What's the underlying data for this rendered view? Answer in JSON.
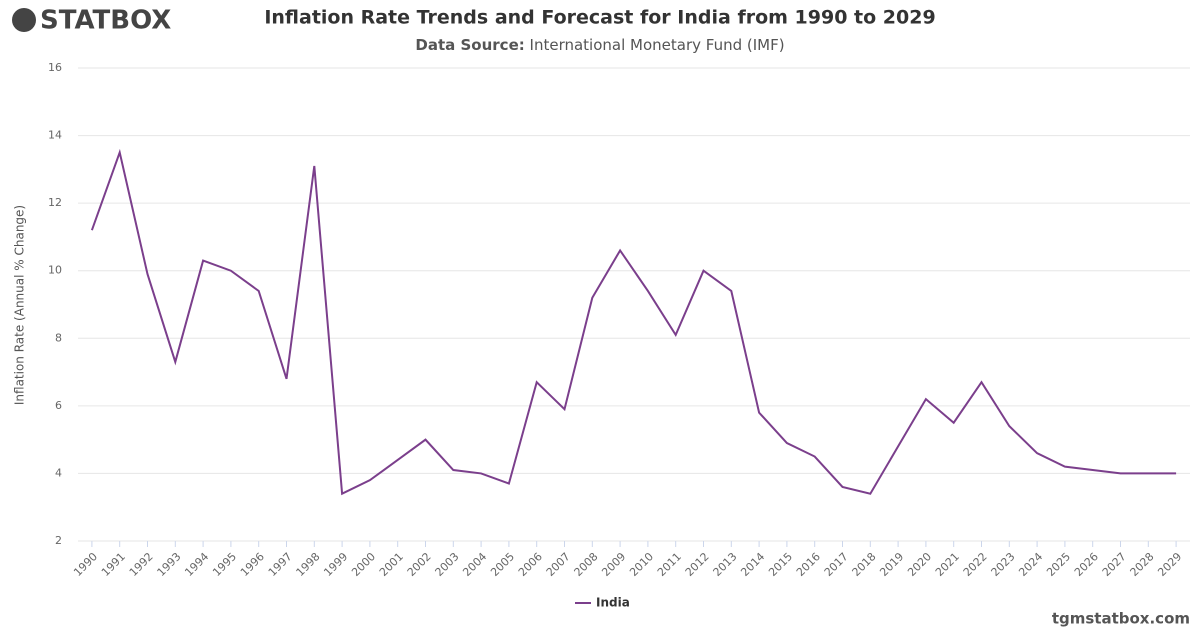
{
  "brand": {
    "logo": "STATBOX",
    "website": "tgmstatbox.com"
  },
  "chart_data": {
    "type": "line",
    "title": "Inflation Rate Trends and Forecast for India from 1990 to 2029",
    "subtitle_label": "Data Source:",
    "subtitle": "International Monetary Fund (IMF)",
    "y_label": "Inflation Rate (Annual % Change)",
    "categories": [
      "1990",
      "1991",
      "1992",
      "1993",
      "1994",
      "1995",
      "1996",
      "1997",
      "1998",
      "1999",
      "2000",
      "2001",
      "2002",
      "2003",
      "2004",
      "2005",
      "2006",
      "2007",
      "2008",
      "2009",
      "2010",
      "2011",
      "2012",
      "2013",
      "2014",
      "2015",
      "2016",
      "2017",
      "2018",
      "2019",
      "2020",
      "2021",
      "2022",
      "2023",
      "2024",
      "2025",
      "2026",
      "2027",
      "2028",
      "2029"
    ],
    "series": [
      {
        "name": "India",
        "color": "#7b3f8c",
        "values": [
          11.2,
          13.5,
          9.9,
          7.3,
          10.3,
          10.0,
          9.4,
          6.8,
          13.1,
          3.4,
          3.8,
          4.4,
          5.0,
          4.1,
          4.0,
          3.7,
          6.7,
          5.9,
          9.2,
          10.6,
          9.4,
          8.1,
          10.0,
          9.4,
          5.8,
          4.9,
          4.5,
          3.6,
          3.4,
          4.8,
          6.2,
          5.5,
          6.7,
          5.4,
          4.6,
          4.2,
          4.1,
          4.0,
          4.0,
          4.0
        ]
      }
    ],
    "ylim": [
      2,
      16
    ],
    "yticks": [
      2,
      4,
      6,
      8,
      10,
      12,
      14,
      16
    ],
    "grid": true,
    "legend": "bottom"
  }
}
